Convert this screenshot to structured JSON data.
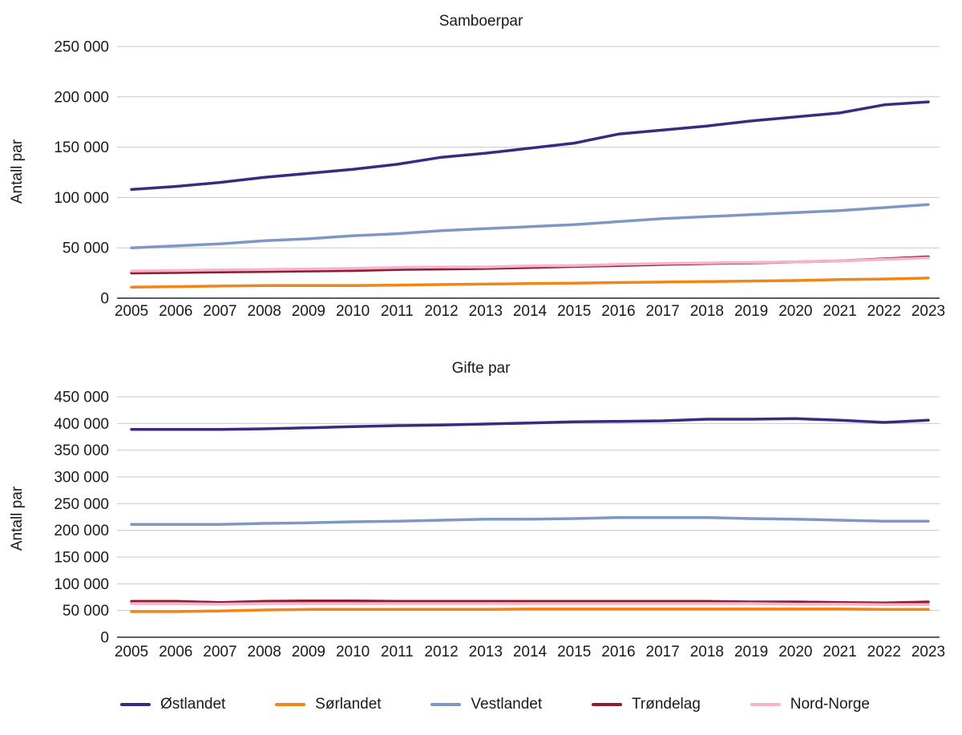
{
  "legend": {
    "items": [
      {
        "label": "Østlandet",
        "color": "#3d2a80"
      },
      {
        "label": "Sørlandet",
        "color": "#f28518"
      },
      {
        "label": "Vestlandet",
        "color": "#7e97c3"
      },
      {
        "label": "Trøndelag",
        "color": "#8c1e2e"
      },
      {
        "label": "Nord-Norge",
        "color": "#f7b2cf"
      }
    ]
  },
  "chart_data": [
    {
      "type": "line",
      "title": "Samboerpar",
      "xlabel": "",
      "ylabel": "Antall par",
      "ylim": [
        0,
        250000
      ],
      "ytick_step": 50000,
      "grid": true,
      "legend_position": "bottom",
      "x": [
        2005,
        2006,
        2007,
        2008,
        2009,
        2010,
        2011,
        2012,
        2013,
        2014,
        2015,
        2016,
        2017,
        2018,
        2019,
        2020,
        2021,
        2022,
        2023
      ],
      "series": [
        {
          "name": "Østlandet",
          "color": "#3d2a80",
          "values": [
            108000,
            111000,
            115000,
            120000,
            124000,
            128000,
            133000,
            140000,
            144000,
            149000,
            154000,
            163000,
            167000,
            171000,
            176000,
            180000,
            184000,
            192000,
            195000
          ]
        },
        {
          "name": "Sørlandet",
          "color": "#f28518",
          "values": [
            11000,
            11500,
            12000,
            12500,
            12500,
            12500,
            13000,
            13500,
            14000,
            14500,
            15000,
            15500,
            16000,
            16500,
            17000,
            17500,
            18500,
            19000,
            20000
          ]
        },
        {
          "name": "Vestlandet",
          "color": "#7e97c3",
          "values": [
            50000,
            52000,
            54000,
            57000,
            59000,
            62000,
            64000,
            67000,
            69000,
            71000,
            73000,
            76000,
            79000,
            81000,
            83000,
            85000,
            87000,
            90000,
            93000
          ]
        },
        {
          "name": "Trøndelag",
          "color": "#8c1e2e",
          "values": [
            25000,
            25500,
            26000,
            26500,
            27000,
            27500,
            28500,
            29000,
            29500,
            30500,
            31500,
            32500,
            33500,
            34500,
            35000,
            36000,
            37000,
            39000,
            41000
          ]
        },
        {
          "name": "Nord-Norge",
          "color": "#f7b2cf",
          "values": [
            27000,
            27500,
            28000,
            28500,
            29000,
            29500,
            30500,
            31000,
            31000,
            32000,
            32500,
            33500,
            34500,
            35000,
            35500,
            36000,
            37000,
            38500,
            40000
          ]
        }
      ]
    },
    {
      "type": "line",
      "title": "Gifte par",
      "xlabel": "",
      "ylabel": "Antall par",
      "ylim": [
        0,
        450000
      ],
      "ytick_step": 50000,
      "grid": true,
      "legend_position": "bottom",
      "x": [
        2005,
        2006,
        2007,
        2008,
        2009,
        2010,
        2011,
        2012,
        2013,
        2014,
        2015,
        2016,
        2017,
        2018,
        2019,
        2020,
        2021,
        2022,
        2023
      ],
      "series": [
        {
          "name": "Østlandet",
          "color": "#3d2a80",
          "values": [
            389000,
            389000,
            389000,
            390000,
            392000,
            394000,
            396000,
            397000,
            399000,
            401000,
            403000,
            404000,
            405000,
            408000,
            408000,
            409000,
            406000,
            402000,
            406000
          ]
        },
        {
          "name": "Sørlandet",
          "color": "#f28518",
          "values": [
            48000,
            48000,
            49000,
            51000,
            52000,
            52000,
            52000,
            52000,
            52000,
            53000,
            53000,
            53000,
            53000,
            53000,
            53000,
            53000,
            53000,
            52000,
            52000
          ]
        },
        {
          "name": "Vestlandet",
          "color": "#7e97c3",
          "values": [
            211000,
            211000,
            211000,
            213000,
            214000,
            216000,
            217000,
            219000,
            221000,
            221000,
            222000,
            224000,
            224000,
            224000,
            222000,
            221000,
            219000,
            217000,
            217000
          ]
        },
        {
          "name": "Trøndelag",
          "color": "#8c1e2e",
          "values": [
            67000,
            67000,
            65000,
            67000,
            68000,
            68000,
            67000,
            67000,
            67000,
            67000,
            67000,
            67000,
            67000,
            67000,
            66000,
            66000,
            65000,
            64000,
            66000
          ]
        },
        {
          "name": "Nord-Norge",
          "color": "#f7b2cf",
          "values": [
            63000,
            63000,
            62000,
            63000,
            63000,
            63000,
            63000,
            63000,
            63000,
            63000,
            63000,
            63000,
            63000,
            63000,
            63000,
            62000,
            62000,
            61000,
            61000
          ]
        }
      ]
    }
  ]
}
